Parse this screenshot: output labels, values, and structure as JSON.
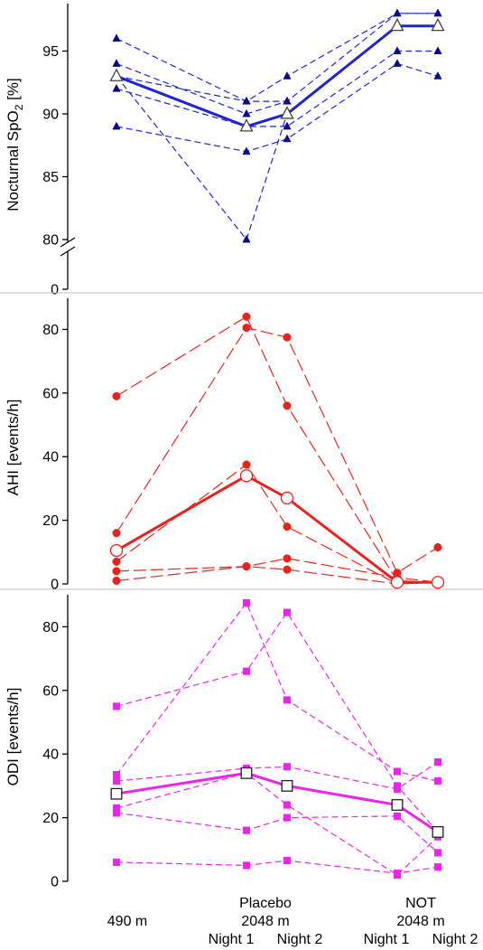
{
  "x_labels": {
    "baseline": [
      "490 m"
    ],
    "placebo": [
      "Placebo",
      "2048 m"
    ],
    "not": [
      "NOT",
      "2048 m"
    ],
    "night1": "Night 1",
    "night2": "Night 2"
  },
  "chart_data": [
    {
      "type": "line",
      "ylabel": "Nocturnal SpO2 [%]",
      "ylabel_main": "Nocturnal SpO",
      "ylabel_sub": "2",
      "ylabel_tail": " [%]",
      "categories": [
        "490 m",
        "Placebo 2048 m Night 1",
        "Placebo 2048 m Night 2",
        "NOT 2048 m Night 1",
        "NOT 2048 m Night 2"
      ],
      "axis_break": [
        0,
        80
      ],
      "yticks": [
        0,
        80,
        85,
        90,
        95
      ],
      "ylim": [
        78,
        99.5
      ],
      "color": "#1f24d6",
      "marker": "triangle",
      "individuals": [
        {
          "x": [
            0,
            1,
            2,
            3,
            4
          ],
          "values": [
            96,
            91,
            93,
            98,
            98
          ]
        },
        {
          "x": [
            0,
            1,
            2,
            3,
            4
          ],
          "values": [
            94,
            90,
            91,
            98,
            98
          ]
        },
        {
          "x": [
            0,
            1,
            2,
            3,
            4
          ],
          "values": [
            92,
            89,
            89,
            95,
            95
          ]
        },
        {
          "x": [
            0,
            1,
            2,
            3,
            4
          ],
          "values": [
            89,
            87,
            88,
            94,
            93
          ]
        },
        {
          "x": [
            0,
            1,
            2,
            3,
            4
          ],
          "values": [
            93,
            80,
            90,
            97,
            97
          ]
        },
        {
          "x": [
            0,
            1,
            2
          ],
          "values": [
            93,
            91,
            91
          ]
        }
      ],
      "mean": {
        "x": [
          0,
          1,
          2,
          3,
          4
        ],
        "values": [
          93,
          89,
          90,
          97,
          97
        ]
      }
    },
    {
      "type": "line",
      "ylabel": "AHI [events/h]",
      "categories": [
        "490 m",
        "Placebo 2048 m Night 1",
        "Placebo 2048 m Night 2",
        "NOT 2048 m Night 1",
        "NOT 2048 m Night 2"
      ],
      "yticks": [
        0,
        20,
        40,
        60,
        80
      ],
      "ylim": [
        -1,
        88
      ],
      "color": "#e8231c",
      "marker": "circle",
      "individuals": [
        {
          "x": [
            0,
            1,
            2,
            3,
            4
          ],
          "values": [
            59,
            84,
            56,
            1,
            0.5
          ]
        },
        {
          "x": [
            0,
            1,
            2,
            3,
            4
          ],
          "values": [
            16,
            80.5,
            77.5,
            3.5,
            11.5
          ]
        },
        {
          "x": [
            0,
            1,
            2,
            3,
            4
          ],
          "values": [
            7,
            37.5,
            18,
            0,
            0.5
          ]
        },
        {
          "x": [
            0,
            1,
            2,
            3,
            4
          ],
          "values": [
            4,
            5.5,
            8,
            2,
            0.5
          ]
        },
        {
          "x": [
            0,
            1,
            2,
            3,
            4
          ],
          "values": [
            1,
            5.5,
            4.5,
            0,
            0.5
          ]
        }
      ],
      "mean": {
        "x": [
          0,
          1,
          2,
          3,
          4
        ],
        "values": [
          10.5,
          34,
          27,
          0.5,
          0.5
        ]
      }
    },
    {
      "type": "line",
      "ylabel": "ODI [events/h]",
      "categories": [
        "490 m",
        "Placebo 2048 m Night 1",
        "Placebo 2048 m Night 2",
        "NOT 2048 m Night 1",
        "NOT 2048 m Night 2"
      ],
      "yticks": [
        0,
        20,
        40,
        60,
        80
      ],
      "ylim": [
        -1,
        88
      ],
      "color": "#ee22ee",
      "marker": "square",
      "individuals": [
        {
          "x": [
            0,
            1,
            2,
            3,
            4
          ],
          "values": [
            55,
            66,
            84.5,
            30,
            15.5
          ]
        },
        {
          "x": [
            0,
            1,
            2,
            3,
            4
          ],
          "values": [
            33.5,
            87.5,
            57,
            34.5,
            31.5
          ]
        },
        {
          "x": [
            0,
            1,
            2,
            3,
            4
          ],
          "values": [
            31.5,
            35.5,
            36,
            29,
            37.5
          ]
        },
        {
          "x": [
            0,
            1,
            2,
            3,
            4
          ],
          "values": [
            23,
            34,
            24,
            2,
            14
          ]
        },
        {
          "x": [
            0,
            1,
            2,
            3,
            4
          ],
          "values": [
            21.5,
            16,
            20,
            20.5,
            9
          ]
        },
        {
          "x": [
            0,
            1,
            2,
            3,
            4
          ],
          "values": [
            6,
            5,
            6.5,
            2.5,
            4.5
          ]
        }
      ],
      "mean": {
        "x": [
          0,
          1,
          2,
          3,
          4
        ],
        "values": [
          27.5,
          34,
          30,
          24,
          15.5
        ]
      }
    }
  ]
}
